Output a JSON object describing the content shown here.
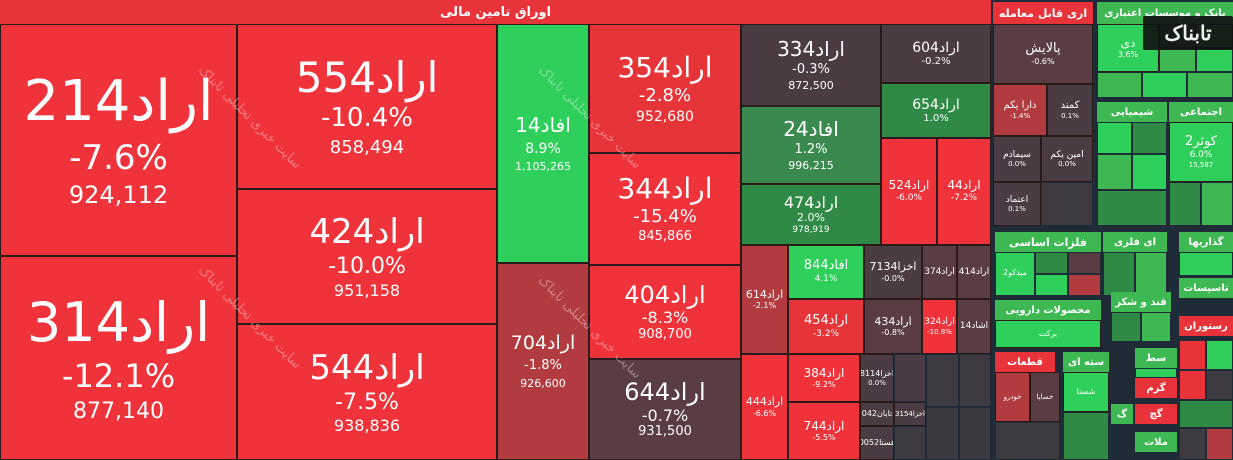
{
  "header": {
    "title": "اوراق تامین مالی"
  },
  "watermark": "سایت خبری تحلیلی تابناک",
  "logo": "تابناک",
  "colors": {
    "red": "#f0333a",
    "darkred": "#b23b3f",
    "muted": "#5a3d42",
    "green": "#2ecf5a",
    "darkgreen": "#2f8a45",
    "midgreen": "#3db852"
  },
  "cells": {
    "c214": {
      "name": "اراد214",
      "pct": "-7.6%",
      "vol": "924,112"
    },
    "c314": {
      "name": "اراد314",
      "pct": "-12.1%",
      "vol": "877,140"
    },
    "c554": {
      "name": "اراد554",
      "pct": "-10.4%",
      "vol": "858,494"
    },
    "c424": {
      "name": "اراد424",
      "pct": "-10.0%",
      "vol": "951,158"
    },
    "c544": {
      "name": "اراد544",
      "pct": "-7.5%",
      "vol": "938,836"
    },
    "f14": {
      "name": "افاد14",
      "pct": "8.9%",
      "vol": "1,105,265"
    },
    "c704": {
      "name": "اراد704",
      "pct": "-1.8%",
      "vol": "926,600"
    },
    "c354": {
      "name": "اراد354",
      "pct": "-2.8%",
      "vol": "952,680"
    },
    "c344": {
      "name": "اراد344",
      "pct": "-15.4%",
      "vol": "845,866"
    },
    "c404": {
      "name": "اراد404",
      "pct": "-8.3%",
      "vol": "908,700"
    },
    "c644": {
      "name": "اراد644",
      "pct": "-0.7%",
      "vol": "931,500"
    },
    "c334": {
      "name": "اراد334",
      "pct": "-0.3%",
      "vol": "872,500"
    },
    "c604": {
      "name": "اراد604",
      "pct": "-0.2%"
    },
    "c654": {
      "name": "اراد654",
      "pct": "1.0%"
    },
    "f24": {
      "name": "افاد24",
      "pct": "1.2%",
      "vol": "996,215"
    },
    "c474": {
      "name": "اراد474",
      "pct": "2.0%",
      "vol": "978,919"
    },
    "c524": {
      "name": "اراد524",
      "pct": "-6.0%"
    },
    "c44": {
      "name": "اراد44",
      "pct": "-7.2%"
    },
    "c614": {
      "name": "اراد614",
      "pct": "-2.1%"
    },
    "f844": {
      "name": "افاد844",
      "pct": "4.1%"
    },
    "a7134": {
      "name": "اخزا7134",
      "pct": "-0.0%"
    },
    "c374": {
      "name": "اراد374"
    },
    "c414": {
      "name": "اراد414"
    },
    "c454": {
      "name": "اراد454",
      "pct": "-3.2%"
    },
    "c434": {
      "name": "اراد434",
      "pct": "-0.8%"
    },
    "c324": {
      "name": "اراد324",
      "pct": "-10.8%"
    },
    "e14": {
      "name": "اشاد14"
    },
    "c444": {
      "name": "اراد444",
      "pct": "-6.6%"
    },
    "c384": {
      "name": "اراد384",
      "pct": "-9.2%"
    },
    "a8114": {
      "name": "اخزا8114",
      "pct": "0.0%"
    },
    "c744": {
      "name": "اراد744",
      "pct": "-5.5%"
    },
    "t042": {
      "name": "تابان042"
    },
    "a3154": {
      "name": "اخزا3154"
    },
    "h0052": {
      "name": "هستا0052"
    }
  },
  "side": {
    "trade_hdr": "اری قابل معامله",
    "paliesh": {
      "name": "پالایش",
      "pct": "-0.6%"
    },
    "darayekom": {
      "name": "دارا یکم",
      "pct": "-1.4%"
    },
    "kamand": {
      "name": "کمند",
      "pct": "0.1%"
    },
    "sima": {
      "name": "سیمادم",
      "pct": "0.0%"
    },
    "amin": {
      "name": "امین یکم",
      "pct": "0.0%"
    },
    "etemad": {
      "name": "اعتماد",
      "pct": "0.1%"
    },
    "bank_hdr": "بانک و موسسات اعتباری",
    "di": {
      "name": "دی",
      "pct": "3.6%"
    },
    "chem_hdr": "شیمیایی",
    "social_hdr": "اجتماعی",
    "kosar": {
      "name": "کوثر2",
      "pct": "6.0%",
      "vol": "15,587"
    },
    "metal_hdr": "فلزات اساسی",
    "metal2_hdr": "ای فلزی",
    "car_hdr": "گذاریها",
    "meed": "میدکو2",
    "pharma_hdr": "محصولات دارویی",
    "barakat": "برکت",
    "tasisat": "تاسیسات",
    "sugar_hdr": "قند و شکر",
    "parts_hdr": "قطعات",
    "khodro": "خودرو",
    "khasapa": "خساپا",
    "cement_hdr": "سته ای",
    "shasta": "شستا",
    "rest_hdr": "رستوران",
    "s1": "سط",
    "s2": "گرم",
    "s3": "گچ",
    "s4": "گ",
    "s5": "ملات"
  }
}
